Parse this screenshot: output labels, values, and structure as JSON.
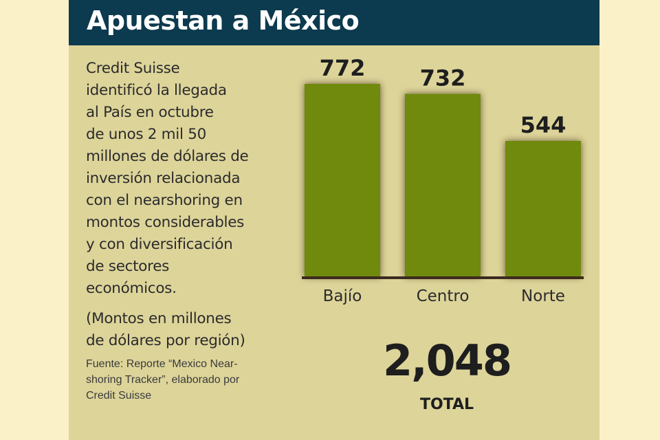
{
  "header": {
    "title": "Apuestan a México"
  },
  "description": {
    "lines": [
      "Credit Suisse",
      "identificó la llegada",
      "al País en octubre",
      "de unos 2 mil 50",
      "millones de dólares de",
      "inversión relacionada",
      "con el nearshoring en",
      "montos considerables",
      "y con diversificación",
      "de sectores",
      "económicos."
    ]
  },
  "note": {
    "lines": [
      "(Montos en millones",
      "de dólares por región)"
    ]
  },
  "source": {
    "lines": [
      "Fuente: Reporte “Mexico Near-",
      "shoring Tracker”, elaborado por",
      "Credit Suisse"
    ]
  },
  "total": {
    "value": "2,048",
    "label": "TOTAL"
  },
  "colors": {
    "header_bg": "#0c3a4e",
    "panel_bg": "#ddd49a",
    "page_bg": "#fbf1c8",
    "bar": "#6f8a0b",
    "bar_shadow": "#3e2a1c",
    "baseline": "#3b2a1e"
  },
  "chart_data": {
    "type": "bar",
    "categories": [
      "Bajío",
      "Centro",
      "Norte"
    ],
    "values": [
      772,
      732,
      544
    ],
    "value_labels": [
      "772",
      "732",
      "544"
    ],
    "ylim": [
      0,
      772
    ],
    "grid": false,
    "legend": "none"
  }
}
